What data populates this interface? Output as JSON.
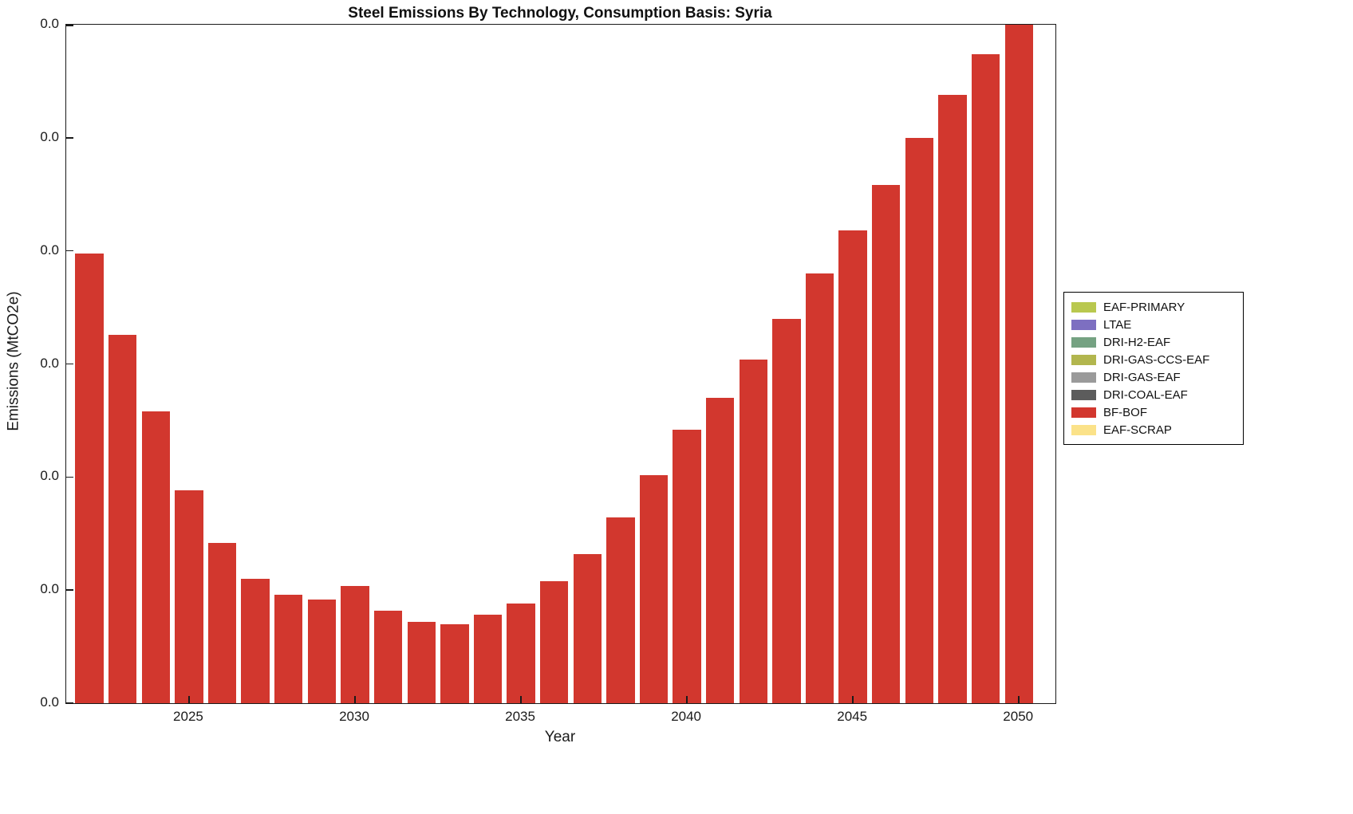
{
  "chart_data": {
    "type": "bar",
    "title": "Steel Emissions By Technology, Consumption Basis: Syria",
    "xlabel": "Year",
    "ylabel": "Emissions (MtCO2e)",
    "x": [
      2022,
      2023,
      2024,
      2025,
      2026,
      2027,
      2028,
      2029,
      2030,
      2031,
      2032,
      2033,
      2034,
      2035,
      2036,
      2037,
      2038,
      2039,
      2040,
      2041,
      2042,
      2043,
      2044,
      2045,
      2046,
      2047,
      2048,
      2049,
      2050
    ],
    "series": [
      {
        "name": "BF-BOF",
        "color": "#d2372e",
        "values": [
          0.0199,
          0.0163,
          0.0129,
          0.0094,
          0.0071,
          0.0055,
          0.0048,
          0.0046,
          0.0052,
          0.0041,
          0.0036,
          0.0035,
          0.0039,
          0.0044,
          0.0054,
          0.0066,
          0.0082,
          0.0101,
          0.0121,
          0.0135,
          0.0152,
          0.017,
          0.019,
          0.0209,
          0.0229,
          0.025,
          0.0269,
          0.0287,
          0.0306
        ]
      }
    ],
    "bar_width_years": 0.85,
    "xlim": [
      2021.3,
      2051.1
    ],
    "ylim": [
      0,
      0.03
    ],
    "xticks": [
      2025,
      2030,
      2035,
      2040,
      2045,
      2050
    ],
    "yticks": [
      0,
      0.005,
      0.01,
      0.015,
      0.02,
      0.025,
      0.03
    ],
    "ytick_labels": [
      "0.0",
      "0.0",
      "0.0",
      "0.0",
      "0.0",
      "0.0",
      "0.0"
    ],
    "grid": false,
    "legend_position": "right-outside",
    "legend": [
      {
        "label": "EAF-PRIMARY",
        "color": "#b9c84f"
      },
      {
        "label": "LTAE",
        "color": "#7d6fc1"
      },
      {
        "label": "DRI-H2-EAF",
        "color": "#75a282"
      },
      {
        "label": "DRI-GAS-CCS-EAF",
        "color": "#b2b64e"
      },
      {
        "label": "DRI-GAS-EAF",
        "color": "#9a9a9a"
      },
      {
        "label": "DRI-COAL-EAF",
        "color": "#5c5c5c"
      },
      {
        "label": "BF-BOF",
        "color": "#d2372e"
      },
      {
        "label": "EAF-SCRAP",
        "color": "#fbe289"
      }
    ]
  }
}
